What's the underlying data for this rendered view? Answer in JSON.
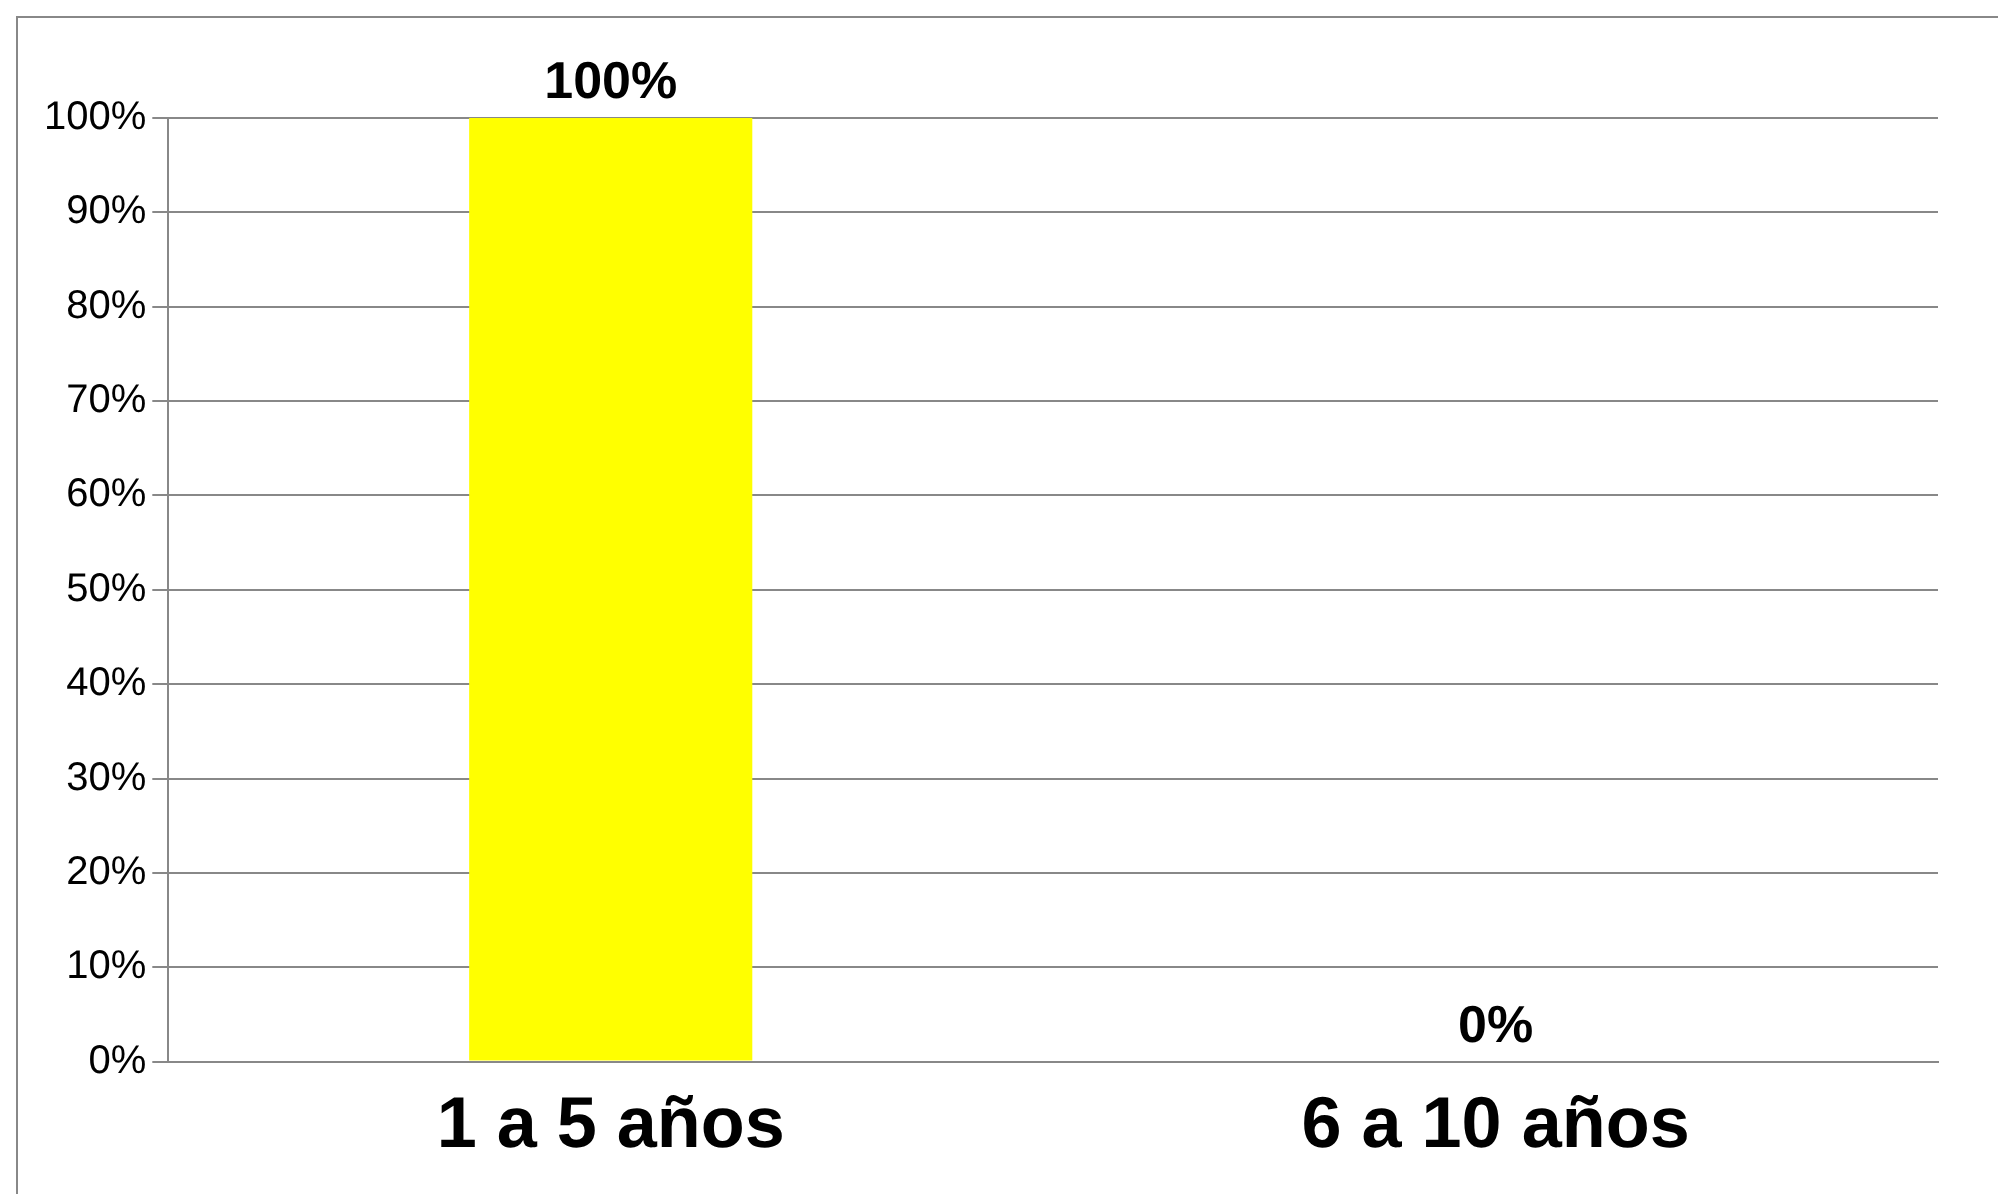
{
  "chart_data": {
    "type": "bar",
    "categories": [
      "1 a 5 años",
      "6 a 10 años"
    ],
    "values": [
      100,
      0
    ],
    "colors": [
      "#ffff00",
      "#c00000"
    ],
    "value_labels": [
      "100%",
      "0%"
    ],
    "ylim": [
      0,
      100
    ],
    "yticks": [
      {
        "value": 0,
        "label": "0%"
      },
      {
        "value": 10,
        "label": "10%"
      },
      {
        "value": 20,
        "label": "20%"
      },
      {
        "value": 30,
        "label": "30%"
      },
      {
        "value": 40,
        "label": "40%"
      },
      {
        "value": 50,
        "label": "50%"
      },
      {
        "value": 60,
        "label": "60%"
      },
      {
        "value": 70,
        "label": "70%"
      },
      {
        "value": 80,
        "label": "80%"
      },
      {
        "value": 90,
        "label": "90%"
      },
      {
        "value": 100,
        "label": "100%"
      }
    ],
    "grid": "y",
    "legend": false
  }
}
